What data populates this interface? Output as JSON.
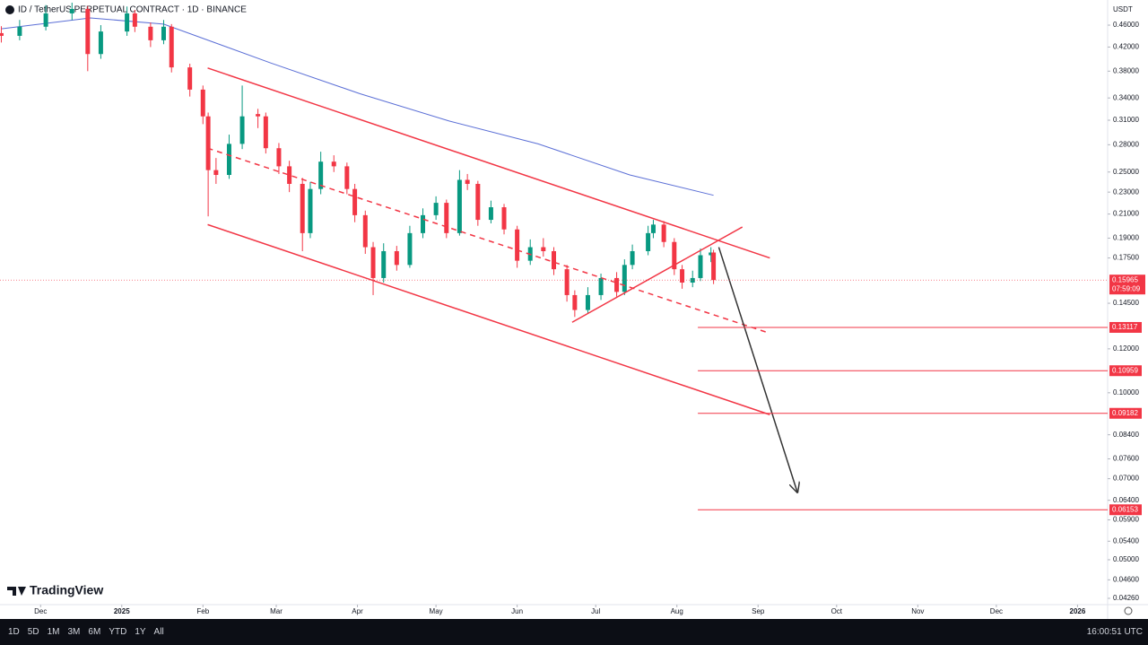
{
  "chart_data": {
    "type": "candlestick",
    "title": "ID / TetherUS PERPETUAL CONTRACT · 1D · BINANCE",
    "y_unit": "USDT",
    "brand": "TradingView",
    "log_scale": true,
    "up_color": "#089981",
    "down_color": "#f23645",
    "xlim": [
      -0.5,
      422.5
    ],
    "xticks": [
      {
        "value": 15,
        "label": "Dec"
      },
      {
        "value": 46,
        "label": "2025"
      },
      {
        "value": 77,
        "label": "Feb"
      },
      {
        "value": 105,
        "label": "Mar"
      },
      {
        "value": 136,
        "label": "Apr"
      },
      {
        "value": 166,
        "label": "May"
      },
      {
        "value": 197,
        "label": "Jun"
      },
      {
        "value": 227,
        "label": "Jul"
      },
      {
        "value": 258,
        "label": "Aug"
      },
      {
        "value": 289,
        "label": "Sep"
      },
      {
        "value": 319,
        "label": "Oct"
      },
      {
        "value": 350,
        "label": "Nov"
      },
      {
        "value": 380,
        "label": "Dec"
      },
      {
        "value": 411,
        "label": "2026"
      }
    ],
    "ylim": [
      0.0415,
      0.5106
    ],
    "yticks": [
      {
        "value": 0.46,
        "label": "0.46000"
      },
      {
        "value": 0.42,
        "label": "0.42000"
      },
      {
        "value": 0.38,
        "label": "0.38000"
      },
      {
        "value": 0.34,
        "label": "0.34000"
      },
      {
        "value": 0.31,
        "label": "0.31000"
      },
      {
        "value": 0.28,
        "label": "0.28000"
      },
      {
        "value": 0.25,
        "label": "0.25000"
      },
      {
        "value": 0.23,
        "label": "0.23000"
      },
      {
        "value": 0.21,
        "label": "0.21000"
      },
      {
        "value": 0.19,
        "label": "0.19000"
      },
      {
        "value": 0.175,
        "label": "0.17500"
      },
      {
        "value": 0.145,
        "label": "0.14500"
      },
      {
        "value": 0.12,
        "label": "0.12000"
      },
      {
        "value": 0.1,
        "label": "0.10000"
      },
      {
        "value": 0.084,
        "label": "0.08400"
      },
      {
        "value": 0.076,
        "label": "0.07600"
      },
      {
        "value": 0.07,
        "label": "0.07000"
      },
      {
        "value": 0.064,
        "label": "0.06400"
      },
      {
        "value": 0.059,
        "label": "0.05900"
      },
      {
        "value": 0.054,
        "label": "0.05400"
      },
      {
        "value": 0.05,
        "label": "0.05000"
      },
      {
        "value": 0.046,
        "label": "0.04600"
      },
      {
        "value": 0.0426,
        "label": "0.04260"
      }
    ],
    "x": [
      0,
      7,
      17,
      27,
      33,
      38,
      48,
      51,
      57,
      62,
      65,
      72,
      77,
      79,
      82,
      87,
      92,
      98,
      101,
      106,
      110,
      115,
      118,
      122,
      127,
      132,
      135,
      139,
      142,
      146,
      151,
      156,
      161,
      166,
      170,
      175,
      178,
      182,
      187,
      192,
      197,
      202,
      207,
      211,
      216,
      219,
      224,
      229,
      235,
      238,
      241,
      247,
      249,
      253,
      257,
      260,
      264,
      267,
      271,
      272
    ],
    "open": [
      0.445,
      0.44,
      0.457,
      0.483,
      0.492,
      0.408,
      0.448,
      0.483,
      0.457,
      0.432,
      0.457,
      0.386,
      0.352,
      0.315,
      0.252,
      0.247,
      0.281,
      0.318,
      0.315,
      0.276,
      0.256,
      0.238,
      0.194,
      0.233,
      0.261,
      0.256,
      0.233,
      0.209,
      0.183,
      0.161,
      0.18,
      0.17,
      0.194,
      0.209,
      0.22,
      0.194,
      0.242,
      0.238,
      0.205,
      0.216,
      0.197,
      0.173,
      0.183,
      0.18,
      0.167,
      0.15,
      0.141,
      0.15,
      0.161,
      0.152,
      0.17,
      0.18,
      0.194,
      0.201,
      0.187,
      0.167,
      0.158,
      0.161,
      0.177,
      0.179
    ],
    "high": [
      0.458,
      0.47,
      0.5,
      0.505,
      0.498,
      0.46,
      0.497,
      0.49,
      0.465,
      0.47,
      0.462,
      0.392,
      0.358,
      0.32,
      0.265,
      0.292,
      0.358,
      0.325,
      0.32,
      0.282,
      0.262,
      0.244,
      0.24,
      0.272,
      0.268,
      0.26,
      0.238,
      0.213,
      0.187,
      0.186,
      0.184,
      0.2,
      0.215,
      0.226,
      0.223,
      0.252,
      0.248,
      0.241,
      0.222,
      0.219,
      0.2,
      0.189,
      0.19,
      0.183,
      0.17,
      0.153,
      0.155,
      0.164,
      0.165,
      0.174,
      0.185,
      0.2,
      0.205,
      0.204,
      0.19,
      0.17,
      0.166,
      0.182,
      0.183,
      0.181
    ],
    "low": [
      0.428,
      0.432,
      0.45,
      0.47,
      0.38,
      0.4,
      0.44,
      0.447,
      0.42,
      0.425,
      0.378,
      0.342,
      0.305,
      0.208,
      0.238,
      0.243,
      0.275,
      0.3,
      0.27,
      0.248,
      0.23,
      0.18,
      0.19,
      0.228,
      0.25,
      0.228,
      0.203,
      0.178,
      0.15,
      0.158,
      0.166,
      0.168,
      0.19,
      0.205,
      0.19,
      0.192,
      0.232,
      0.2,
      0.202,
      0.193,
      0.168,
      0.17,
      0.176,
      0.163,
      0.146,
      0.137,
      0.139,
      0.147,
      0.149,
      0.15,
      0.167,
      0.177,
      0.19,
      0.183,
      0.163,
      0.154,
      0.155,
      0.159,
      0.172,
      0.157
    ],
    "close": [
      0.44,
      0.457,
      0.483,
      0.492,
      0.408,
      0.448,
      0.483,
      0.457,
      0.432,
      0.457,
      0.386,
      0.352,
      0.315,
      0.252,
      0.247,
      0.281,
      0.315,
      0.315,
      0.276,
      0.256,
      0.238,
      0.194,
      0.233,
      0.261,
      0.256,
      0.233,
      0.209,
      0.183,
      0.161,
      0.18,
      0.17,
      0.194,
      0.209,
      0.22,
      0.194,
      0.242,
      0.238,
      0.205,
      0.216,
      0.197,
      0.173,
      0.183,
      0.18,
      0.167,
      0.15,
      0.141,
      0.15,
      0.161,
      0.152,
      0.17,
      0.18,
      0.194,
      0.201,
      0.187,
      0.167,
      0.158,
      0.161,
      0.177,
      0.179,
      0.15965
    ],
    "moving_average": {
      "color": "#5b6fd6",
      "x": [
        0,
        34,
        62,
        79,
        103,
        137,
        171,
        205,
        240,
        272
      ],
      "values": [
        0.453,
        0.474,
        0.462,
        0.432,
        0.393,
        0.346,
        0.309,
        0.281,
        0.247,
        0.227
      ]
    },
    "trendlines": [
      {
        "color": "#f23645",
        "dashed": false,
        "x": [
          78.8,
          293.5
        ],
        "values": [
          0.385,
          0.175
        ]
      },
      {
        "color": "#f23645",
        "dashed": false,
        "x": [
          78.8,
          293.5
        ],
        "values": [
          0.201,
          0.0913
        ]
      },
      {
        "color": "#f23645",
        "dashed": true,
        "x": [
          78.8,
          293.5
        ],
        "values": [
          0.276,
          0.128
        ]
      },
      {
        "color": "#f23645",
        "dashed": false,
        "x": [
          218,
          283
        ],
        "values": [
          0.134,
          0.199
        ]
      },
      {
        "color": "#333333",
        "dashed": false,
        "arrow": true,
        "x": [
          274,
          304
        ],
        "values": [
          0.183,
          0.0662
        ]
      }
    ],
    "levels": {
      "color": "#f23645",
      "x_start": 266,
      "values": [
        0.13117,
        0.10959,
        0.09182,
        0.06153
      ]
    },
    "last_price": 0.15965,
    "countdown": "07:59:09",
    "ranges": [
      "1D",
      "5D",
      "1M",
      "3M",
      "6M",
      "YTD",
      "1Y",
      "All"
    ],
    "clock": "16:00:51 UTC"
  }
}
